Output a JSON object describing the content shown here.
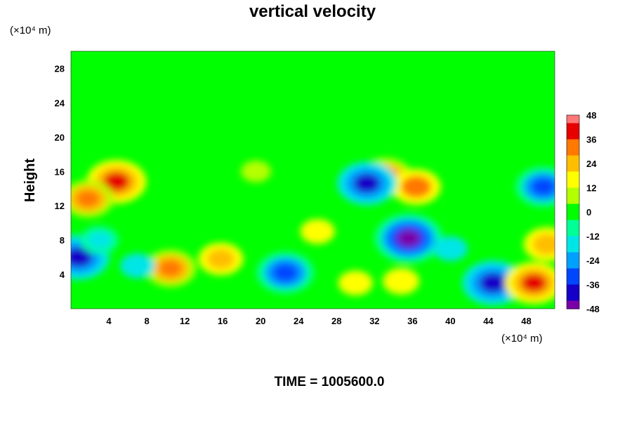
{
  "chart_data": {
    "type": "heatmap",
    "title": "vertical velocity",
    "ylabel": "Height",
    "xlabel": "",
    "y_unit": "(×10⁴ m)",
    "x_unit": "(×10⁴ m)",
    "xlim": [
      0,
      51
    ],
    "ylim": [
      0,
      30
    ],
    "x_ticks": [
      4,
      8,
      12,
      16,
      20,
      24,
      28,
      32,
      36,
      40,
      44,
      48
    ],
    "y_ticks": [
      4,
      8,
      12,
      16,
      20,
      24,
      28
    ],
    "colorbar": {
      "min": -48,
      "max": 48,
      "ticks": [
        48,
        36,
        24,
        12,
        0,
        -12,
        -24,
        -36,
        -48
      ],
      "colormap": [
        "#7a00a8",
        "#1400c8",
        "#0046ff",
        "#00a0ff",
        "#00e6e6",
        "#00ff96",
        "#00ff00",
        "#b4ff00",
        "#ffff00",
        "#ffbe00",
        "#ff7800",
        "#e60000",
        "#ff7878"
      ]
    },
    "background_value": 0,
    "features": [
      {
        "x": 10.5,
        "y": 4.7,
        "value": 30
      },
      {
        "x": 15.8,
        "y": 5.8,
        "value": 24
      },
      {
        "x": 4.8,
        "y": 14.8,
        "value": 38
      },
      {
        "x": 1.8,
        "y": 12.8,
        "value": 30
      },
      {
        "x": 33.2,
        "y": 15.3,
        "value": 32
      },
      {
        "x": 36.4,
        "y": 14.2,
        "value": 28
      },
      {
        "x": 44.5,
        "y": 3.0,
        "value": -40
      },
      {
        "x": 48.8,
        "y": 3.0,
        "value": 36
      },
      {
        "x": 22.6,
        "y": 4.2,
        "value": -36
      },
      {
        "x": 35.6,
        "y": 8.2,
        "value": -46
      },
      {
        "x": 31.2,
        "y": 14.6,
        "value": -38
      },
      {
        "x": 49.8,
        "y": 14.2,
        "value": -34
      },
      {
        "x": 0.8,
        "y": 6.0,
        "value": -40
      },
      {
        "x": 30.0,
        "y": 3.0,
        "value": 14
      },
      {
        "x": 34.8,
        "y": 3.2,
        "value": 16
      },
      {
        "x": 26.0,
        "y": 9.0,
        "value": 14
      },
      {
        "x": 7.0,
        "y": 5.0,
        "value": -14
      },
      {
        "x": 3.0,
        "y": 8.0,
        "value": -18
      },
      {
        "x": 40.0,
        "y": 7.0,
        "value": -14
      },
      {
        "x": 19.5,
        "y": 16.0,
        "value": 10
      },
      {
        "x": 50.2,
        "y": 7.5,
        "value": 26
      }
    ],
    "footer": "TIME = 1005600.0",
    "grid": false
  }
}
